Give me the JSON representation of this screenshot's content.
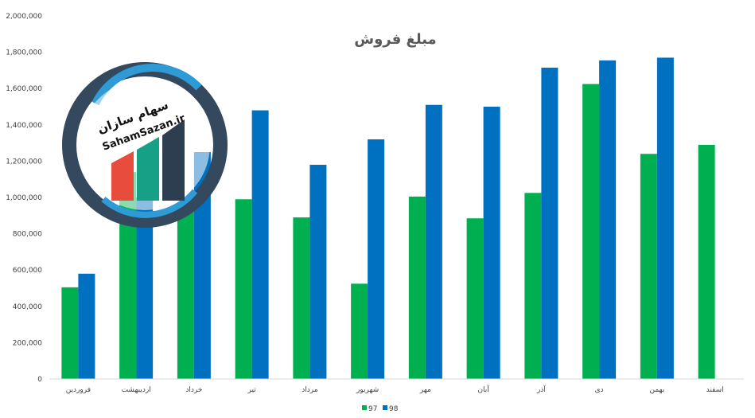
{
  "chart_data": {
    "type": "bar",
    "title": "مبلغ فروش",
    "xlabel": "",
    "ylabel": "",
    "categories": [
      "فروردین",
      "اردیبهشت",
      "خرداد",
      "تیر",
      "مرداد",
      "شهریور",
      "مهر",
      "آبان",
      "آذر",
      "دی",
      "بهمن",
      "اسفند"
    ],
    "series": [
      {
        "name": "97",
        "color": "#00b050",
        "values": [
          505000,
          1140000,
          930000,
          990000,
          890000,
          525000,
          1005000,
          885000,
          1025000,
          1625000,
          1240000,
          1290000
        ]
      },
      {
        "name": "98",
        "color": "#0070c0",
        "values": [
          580000,
          1000000,
          1250000,
          1480000,
          1180000,
          1320000,
          1510000,
          1500000,
          1715000,
          1755000,
          1770000,
          null
        ]
      }
    ],
    "ylim": [
      0,
      2000000
    ],
    "yticks": [
      "0",
      "200,000",
      "400,000",
      "600,000",
      "800,000",
      "1,000,000",
      "1,200,000",
      "1,400,000",
      "1,600,000",
      "1,800,000",
      "2,000,000"
    ],
    "grid": false,
    "legend_position": "bottom"
  },
  "watermark": {
    "text_fa": "سهام سازان",
    "text_en": "SahamSazan.ir",
    "colors": {
      "ring_dark": "#34495e",
      "ring_light": "#2e9bd6",
      "bar_red": "#e74c3c",
      "bar_teal": "#16a085",
      "bar_dark": "#2c3e50"
    }
  }
}
